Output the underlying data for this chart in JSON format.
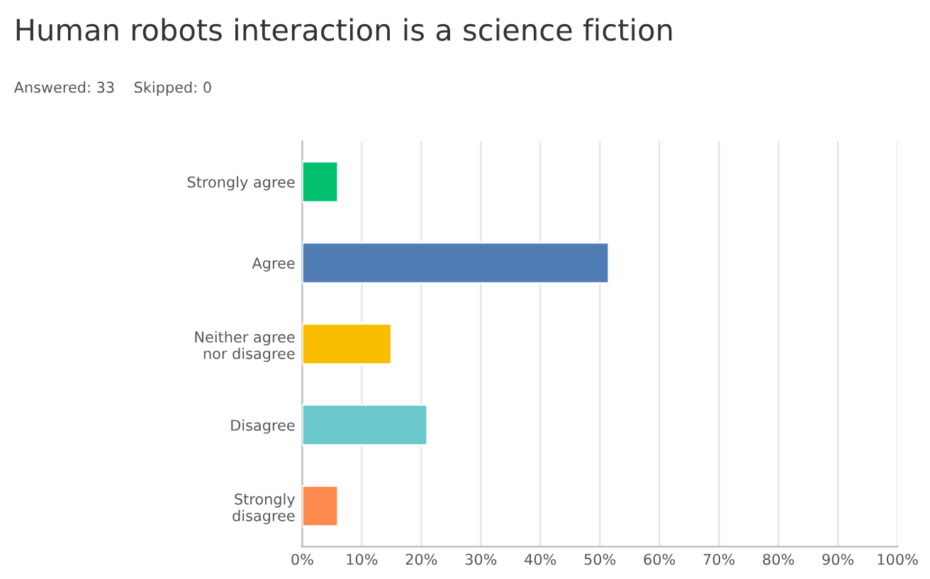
{
  "chart_data": {
    "type": "bar",
    "orientation": "horizontal",
    "title": "Human robots interaction is a science fiction",
    "subtitle": "Answered: 33    Skipped: 0",
    "categories": [
      "Strongly agree",
      "Agree",
      "Neither agree nor disagree",
      "Disagree",
      "Strongly disagree"
    ],
    "values": [
      6,
      51.5,
      15,
      21,
      6
    ],
    "colors": [
      "#00bf6f",
      "#507cb6",
      "#f9be00",
      "#6bc8cd",
      "#ff8b4f"
    ],
    "xlim": [
      0,
      100
    ],
    "xticks": [
      {
        "value": 0,
        "label": "0%"
      },
      {
        "value": 10,
        "label": "10%"
      },
      {
        "value": 20,
        "label": "20%"
      },
      {
        "value": 30,
        "label": "30%"
      },
      {
        "value": 40,
        "label": "40%"
      },
      {
        "value": 50,
        "label": "50%"
      },
      {
        "value": 60,
        "label": "60%"
      },
      {
        "value": 70,
        "label": "70%"
      },
      {
        "value": 80,
        "label": "80%"
      },
      {
        "value": 90,
        "label": "90%"
      },
      {
        "value": 100,
        "label": "100%"
      }
    ],
    "grid": "x",
    "legend": false
  }
}
